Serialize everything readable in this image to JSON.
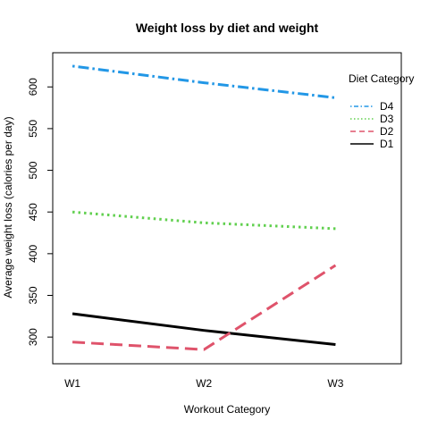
{
  "chart_data": {
    "type": "line",
    "title": "Weight loss by diet and weight",
    "xlabel": "Workout Category",
    "ylabel": "Average weight loss (calories per day)",
    "categories": [
      "W1",
      "W2",
      "W3"
    ],
    "xlim": [
      0.85,
      3.5
    ],
    "ylim": [
      268,
      641
    ],
    "yticks": [
      300,
      350,
      400,
      450,
      500,
      550,
      600
    ],
    "grid": false,
    "legend": {
      "title": "Diet Category",
      "placement": "top-right",
      "order": [
        "D4",
        "D3",
        "D2",
        "D1"
      ]
    },
    "series": [
      {
        "name": "D1",
        "values": [
          328,
          308,
          291
        ],
        "color": "#000000",
        "dash": "solid"
      },
      {
        "name": "D2",
        "values": [
          294,
          285,
          386
        ],
        "color": "#DF536B",
        "dash": "dashed"
      },
      {
        "name": "D3",
        "values": [
          450,
          437,
          430
        ],
        "color": "#61D04F",
        "dash": "dotted"
      },
      {
        "name": "D4",
        "values": [
          625,
          605,
          587
        ],
        "color": "#2297E6",
        "dash": "dotdash"
      }
    ]
  }
}
